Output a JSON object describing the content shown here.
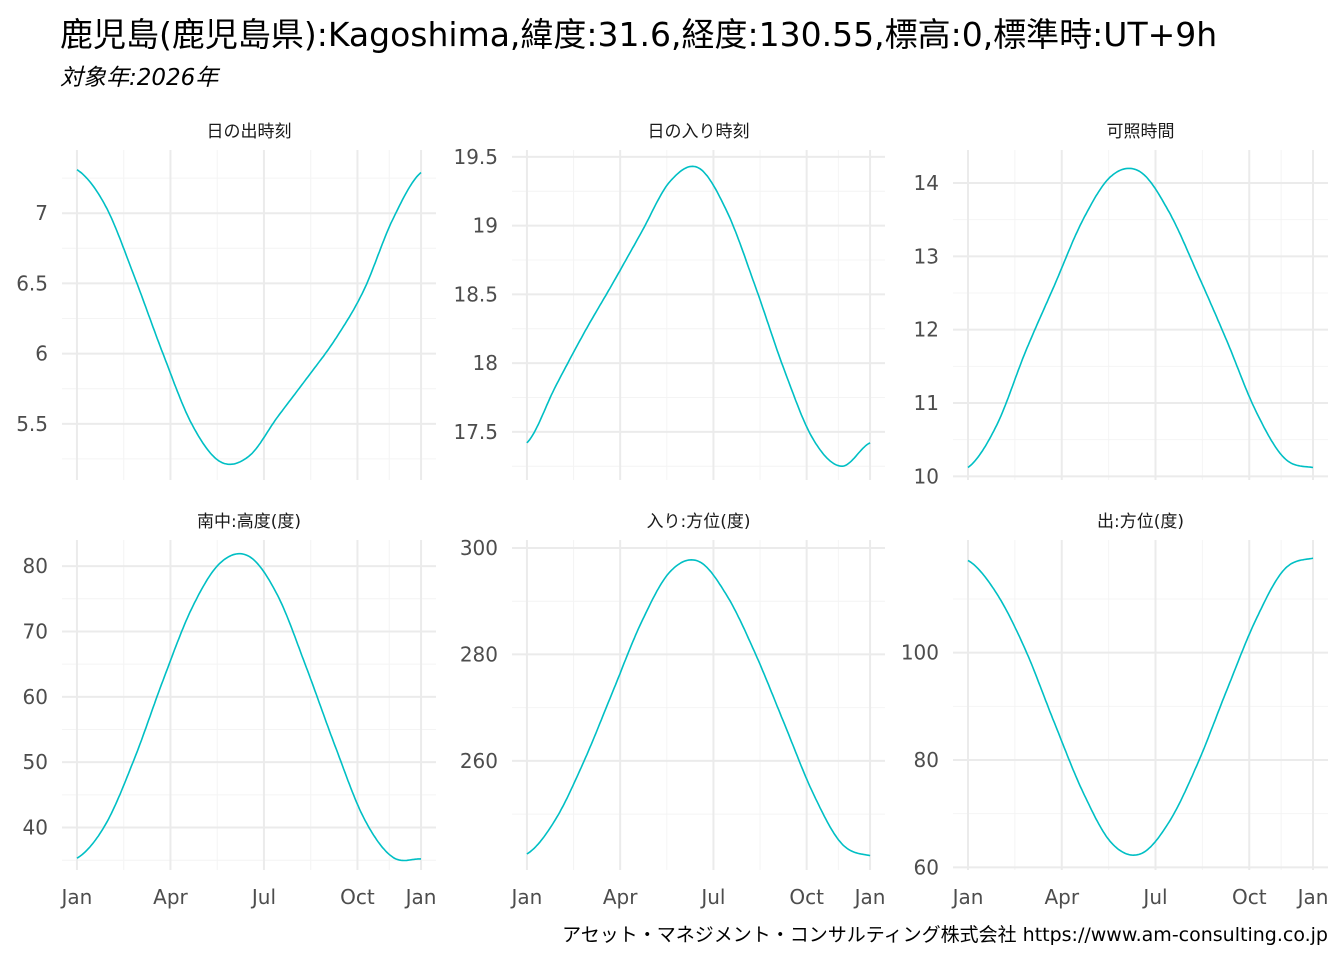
{
  "title": "鹿児島(鹿児島県):Kagoshima,緯度:31.6,経度:130.55,標高:0,標準時:UT+9h",
  "subtitle": "対象年:2026年",
  "caption": "アセット・マネジメント・コンサルティング株式会社 https://www.am-consulting.co.jp",
  "colors": {
    "line": "#00BFC4",
    "grid_major": "#EBEBEB",
    "grid_minor": "#F4F4F4",
    "tick_text": "#4D4D4D"
  },
  "chart_data": [
    {
      "type": "line",
      "title": "日の出時刻",
      "x_tick_labels": [
        "Jan",
        "Apr",
        "Jul",
        "Oct",
        "Jan"
      ],
      "x": [
        "Jan",
        "Feb",
        "Mar",
        "Apr",
        "May",
        "Jun",
        "Jul",
        "Aug",
        "Sep",
        "Oct",
        "Nov",
        "Dec",
        "Jan"
      ],
      "values": [
        7.31,
        7.05,
        6.55,
        6.0,
        5.5,
        5.23,
        5.27,
        5.55,
        5.82,
        6.1,
        6.45,
        6.95,
        7.29
      ],
      "yticks": [
        5.5,
        6.0,
        6.5,
        7.0
      ],
      "ylim": [
        5.1,
        7.45
      ]
    },
    {
      "type": "line",
      "title": "日の入り時刻",
      "x_tick_labels": [
        "Jan",
        "Apr",
        "Jul",
        "Oct",
        "Jan"
      ],
      "x": [
        "Jan",
        "Feb",
        "Mar",
        "Apr",
        "May",
        "Jun",
        "Jul",
        "Aug",
        "Sep",
        "Oct",
        "Nov",
        "Dec",
        "Jan"
      ],
      "values": [
        17.42,
        17.83,
        18.22,
        18.58,
        18.95,
        19.32,
        19.42,
        19.1,
        18.55,
        17.95,
        17.45,
        17.25,
        17.42
      ],
      "yticks": [
        17.5,
        18.0,
        18.5,
        19.0,
        19.5
      ],
      "ylim": [
        17.15,
        19.55
      ]
    },
    {
      "type": "line",
      "title": "可照時間",
      "x_tick_labels": [
        "Jan",
        "Apr",
        "Jul",
        "Oct",
        "Jan"
      ],
      "x": [
        "Jan",
        "Feb",
        "Mar",
        "Apr",
        "May",
        "Jun",
        "Jul",
        "Aug",
        "Sep",
        "Oct",
        "Nov",
        "Dec",
        "Jan"
      ],
      "values": [
        10.12,
        10.7,
        11.7,
        12.6,
        13.5,
        14.1,
        14.15,
        13.6,
        12.75,
        11.85,
        10.9,
        10.25,
        10.12
      ],
      "yticks": [
        10,
        11,
        12,
        13,
        14
      ],
      "ylim": [
        9.95,
        14.45
      ]
    },
    {
      "type": "line",
      "title": "南中:高度(度)",
      "x_tick_labels": [
        "Jan",
        "Apr",
        "Jul",
        "Oct",
        "Jan"
      ],
      "x": [
        "Jan",
        "Feb",
        "Mar",
        "Apr",
        "May",
        "Jun",
        "Jul",
        "Aug",
        "Sep",
        "Oct",
        "Nov",
        "Dec",
        "Jan"
      ],
      "values": [
        35.3,
        40.5,
        50.5,
        62.5,
        73.5,
        80.5,
        81.5,
        75.5,
        64.5,
        52.5,
        41.5,
        35.5,
        35.2
      ],
      "yticks": [
        40,
        50,
        60,
        70,
        80
      ],
      "ylim": [
        33.5,
        84
      ]
    },
    {
      "type": "line",
      "title": "入り:方位(度)",
      "x_tick_labels": [
        "Jan",
        "Apr",
        "Jul",
        "Oct",
        "Jan"
      ],
      "x": [
        "Jan",
        "Feb",
        "Mar",
        "Apr",
        "May",
        "Jun",
        "Jul",
        "Aug",
        "Sep",
        "Oct",
        "Nov",
        "Dec",
        "Jan"
      ],
      "values": [
        242.5,
        249,
        260,
        273,
        286,
        295.5,
        297.5,
        291,
        280,
        267,
        254,
        244.5,
        242.2
      ],
      "yticks": [
        260,
        280,
        300
      ],
      "ylim": [
        239.5,
        301.5
      ]
    },
    {
      "type": "line",
      "title": "出:方位(度)",
      "x_tick_labels": [
        "Jan",
        "Apr",
        "Jul",
        "Oct",
        "Jan"
      ],
      "x": [
        "Jan",
        "Feb",
        "Mar",
        "Apr",
        "May",
        "Jun",
        "Jul",
        "Aug",
        "Sep",
        "Oct",
        "Nov",
        "Dec",
        "Jan"
      ],
      "values": [
        117.2,
        111,
        100.5,
        87,
        74,
        64.5,
        62.5,
        68.5,
        79.5,
        93,
        106,
        115.5,
        117.6
      ],
      "yticks": [
        60,
        80,
        100
      ],
      "ylim": [
        59.5,
        121
      ]
    }
  ]
}
